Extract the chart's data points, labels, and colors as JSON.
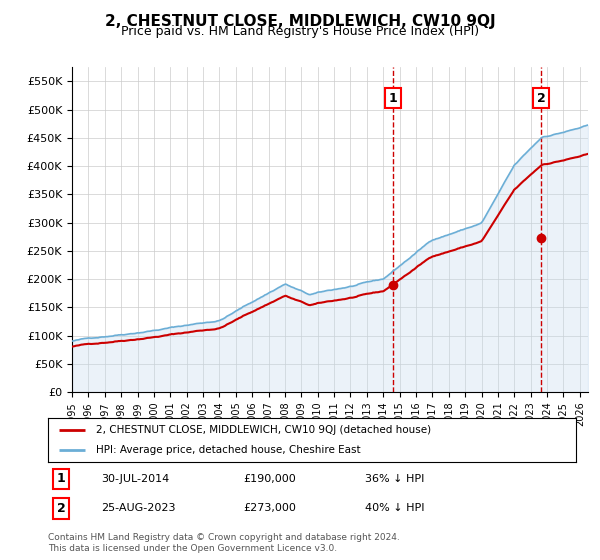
{
  "title": "2, CHESTNUT CLOSE, MIDDLEWICH, CW10 9QJ",
  "subtitle": "Price paid vs. HM Land Registry's House Price Index (HPI)",
  "hpi_label": "HPI: Average price, detached house, Cheshire East",
  "property_label": "2, CHESTNUT CLOSE, MIDDLEWICH, CW10 9QJ (detached house)",
  "footnote": "Contains HM Land Registry data © Crown copyright and database right 2024.\nThis data is licensed under the Open Government Licence v3.0.",
  "sale1": {
    "date": "30-JUL-2014",
    "price": 190000,
    "label": "1",
    "hpi_diff": "36% ↓ HPI"
  },
  "sale2": {
    "date": "25-AUG-2023",
    "price": 273000,
    "label": "2",
    "hpi_diff": "40% ↓ HPI"
  },
  "ylim": [
    0,
    575000
  ],
  "yticks": [
    0,
    50000,
    100000,
    150000,
    200000,
    250000,
    300000,
    350000,
    400000,
    450000,
    500000,
    550000
  ],
  "ytick_labels": [
    "£0",
    "£50K",
    "£100K",
    "£150K",
    "£200K",
    "£250K",
    "£300K",
    "£350K",
    "£400K",
    "£450K",
    "£500K",
    "£550K"
  ],
  "hpi_color": "#6baed6",
  "hpi_fill_color": "#c6dbef",
  "property_color": "#cc0000",
  "sale_marker_color": "#cc0000",
  "dashed_line_color": "#cc0000",
  "background_color": "#ffffff",
  "grid_color": "#cccccc",
  "xlim_start": 1995.0,
  "xlim_end": 2026.5,
  "xticks": [
    1995,
    1996,
    1997,
    1998,
    1999,
    2000,
    2001,
    2002,
    2003,
    2004,
    2005,
    2006,
    2007,
    2008,
    2009,
    2010,
    2011,
    2012,
    2013,
    2014,
    2015,
    2016,
    2017,
    2018,
    2019,
    2020,
    2021,
    2022,
    2023,
    2024,
    2025,
    2026
  ]
}
